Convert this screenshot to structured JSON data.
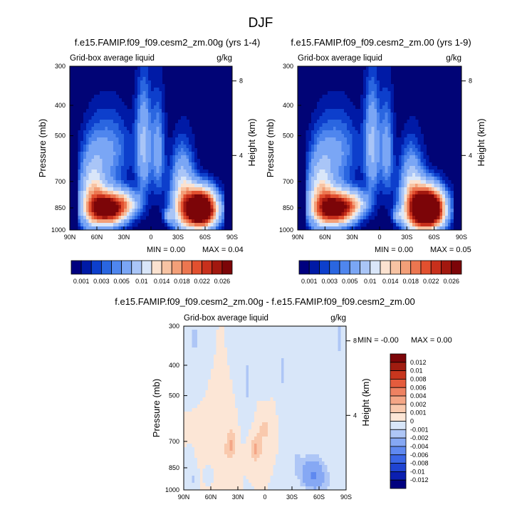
{
  "figure": {
    "title": "DJF"
  },
  "colors": {
    "seq": [
      "#00007f",
      "#001aa6",
      "#0d3fcc",
      "#2a66e0",
      "#4f86ee",
      "#7aa6f5",
      "#a9c5f7",
      "#d9e6f9",
      "#fbe2d0",
      "#f7c3a3",
      "#f39f78",
      "#ec7650",
      "#e2502f",
      "#c8301c",
      "#a2180f",
      "#7c0508"
    ],
    "diff": [
      "#00007f",
      "#0b1fb0",
      "#1f44d2",
      "#3a66e6",
      "#5f89f0",
      "#86a8f4",
      "#aec6f6",
      "#d8e6f9",
      "#fce6d6",
      "#f9c9ad",
      "#f4a686",
      "#ee8262",
      "#e45c3d",
      "#c8361e",
      "#a01c10",
      "#7c0508"
    ],
    "panel_bg": "#010476",
    "diff_bg": "#fde5d3"
  },
  "chart_data": [
    {
      "id": "panel1",
      "type": "heatmap",
      "title": "f.e15.FAMIP.f09_f09.cesm2_zm.00g (yrs 1-4)",
      "subtitle_left": "Grid-box average liquid",
      "subtitle_right": "g/kg",
      "ylabel": "Pressure (mb)",
      "ylabel_right": "Height (km)",
      "x_ticks": [
        90,
        60,
        30,
        0,
        -30,
        -60,
        -90
      ],
      "x_ticklabels": [
        "90N",
        "60N",
        "30N",
        "0",
        "30S",
        "60S",
        "90S"
      ],
      "y_ticks": [
        300,
        400,
        500,
        700,
        850,
        1000
      ],
      "y_ticklabels": [
        "300",
        "400",
        "500",
        "700",
        "850",
        "1000"
      ],
      "right_ticks": [
        8,
        4
      ],
      "right_ticklabels": [
        "8",
        "4"
      ],
      "ylim": [
        1000,
        300
      ],
      "xlim": [
        90,
        -90
      ],
      "min_label": "MIN =   0.00",
      "max_label": "MAX =  0.04",
      "levels": [
        0.001,
        0.002,
        0.003,
        0.004,
        0.005,
        0.0075,
        0.01,
        0.012,
        0.014,
        0.016,
        0.018,
        0.02,
        0.022,
        0.024,
        0.026
      ],
      "colorbar_labels": [
        "0.001",
        "0.003",
        "0.005",
        "0.01",
        "0.014",
        "0.018",
        "0.022",
        "0.026"
      ],
      "features": [
        {
          "lat": 47,
          "p": 855,
          "amp": 0.031,
          "slat": 14,
          "sp": 70
        },
        {
          "lat": 65,
          "p": 780,
          "amp": 0.012,
          "slat": 10,
          "sp": 150
        },
        {
          "lat": 25,
          "p": 820,
          "amp": 0.007,
          "slat": 10,
          "sp": 50
        },
        {
          "lat": -55,
          "p": 860,
          "amp": 0.042,
          "slat": 12,
          "sp": 80
        },
        {
          "lat": -35,
          "p": 790,
          "amp": 0.012,
          "slat": 9,
          "sp": 160
        },
        {
          "lat": 8,
          "p": 540,
          "amp": 0.008,
          "slat": 6,
          "sp": 150
        },
        {
          "lat": -8,
          "p": 560,
          "amp": 0.006,
          "slat": 5,
          "sp": 140
        },
        {
          "lat": -20,
          "p": 900,
          "amp": 0.006,
          "slat": 4,
          "sp": 35
        },
        {
          "lat": 45,
          "p": 560,
          "amp": 0.005,
          "slat": 16,
          "sp": 110
        }
      ]
    },
    {
      "id": "panel2",
      "type": "heatmap",
      "title": "f.e15.FAMIP.f09_f09.cesm2_zm.00 (yrs 1-9)",
      "subtitle_left": "Grid-box average liquid",
      "subtitle_right": "g/kg",
      "ylabel": "Pressure (mb)",
      "ylabel_right": "Height (km)",
      "x_ticks": [
        90,
        60,
        30,
        0,
        -30,
        -60,
        -90
      ],
      "x_ticklabels": [
        "90N",
        "60N",
        "30N",
        "0",
        "30S",
        "60S",
        "90S"
      ],
      "y_ticks": [
        300,
        400,
        500,
        700,
        850,
        1000
      ],
      "y_ticklabels": [
        "300",
        "400",
        "500",
        "700",
        "850",
        "1000"
      ],
      "right_ticks": [
        8,
        4
      ],
      "right_ticklabels": [
        "8",
        "4"
      ],
      "ylim": [
        1000,
        300
      ],
      "xlim": [
        90,
        -90
      ],
      "min_label": "MIN =   0.00",
      "max_label": "MAX =  0.05",
      "levels": [
        0.001,
        0.002,
        0.003,
        0.004,
        0.005,
        0.0075,
        0.01,
        0.012,
        0.014,
        0.016,
        0.018,
        0.02,
        0.022,
        0.024,
        0.026
      ],
      "colorbar_labels": [
        "0.001",
        "0.003",
        "0.005",
        "0.01",
        "0.014",
        "0.018",
        "0.022",
        "0.026"
      ],
      "features": [
        {
          "lat": 47,
          "p": 855,
          "amp": 0.03,
          "slat": 14,
          "sp": 70
        },
        {
          "lat": 65,
          "p": 780,
          "amp": 0.012,
          "slat": 10,
          "sp": 150
        },
        {
          "lat": 25,
          "p": 820,
          "amp": 0.007,
          "slat": 10,
          "sp": 50
        },
        {
          "lat": -53,
          "p": 860,
          "amp": 0.046,
          "slat": 12,
          "sp": 85
        },
        {
          "lat": -35,
          "p": 790,
          "amp": 0.012,
          "slat": 9,
          "sp": 160
        },
        {
          "lat": 8,
          "p": 540,
          "amp": 0.008,
          "slat": 6,
          "sp": 150
        },
        {
          "lat": -8,
          "p": 560,
          "amp": 0.006,
          "slat": 5,
          "sp": 140
        },
        {
          "lat": -20,
          "p": 900,
          "amp": 0.006,
          "slat": 4,
          "sp": 35
        },
        {
          "lat": 45,
          "p": 560,
          "amp": 0.005,
          "slat": 16,
          "sp": 110
        }
      ]
    },
    {
      "id": "panel3",
      "type": "heatmap",
      "title": "f.e15.FAMIP.f09_f09.cesm2_zm.00g - f.e15.FAMIP.f09_f09.cesm2_zm.00",
      "subtitle_left": "Grid-box average liquid",
      "subtitle_right": "g/kg",
      "ylabel": "Pressure (mb)",
      "ylabel_right": "Height (km)",
      "x_ticks": [
        90,
        60,
        30,
        0,
        -30,
        -60,
        -90
      ],
      "x_ticklabels": [
        "90N",
        "60N",
        "30N",
        "0",
        "30S",
        "60S",
        "90S"
      ],
      "y_ticks": [
        300,
        400,
        500,
        700,
        850,
        1000
      ],
      "y_ticklabels": [
        "300",
        "400",
        "500",
        "700",
        "850",
        "1000"
      ],
      "right_ticks": [
        8,
        4
      ],
      "right_ticklabels": [
        "8",
        "4"
      ],
      "ylim": [
        1000,
        300
      ],
      "xlim": [
        90,
        -90
      ],
      "min_label": "MIN =  -0.00",
      "max_label": "MAX =   0.00",
      "levels": [
        -0.012,
        -0.01,
        -0.008,
        -0.006,
        -0.004,
        -0.002,
        -0.001,
        0,
        0.001,
        0.002,
        0.004,
        0.006,
        0.008,
        0.01,
        0.012
      ],
      "colorbar_labels": [
        "0.012",
        "0.01",
        "0.008",
        "0.006",
        "0.004",
        "0.002",
        "0.001",
        "0",
        "-0.001",
        "-0.002",
        "-0.004",
        "-0.006",
        "-0.008",
        "-0.01",
        "-0.012"
      ],
      "features": [
        {
          "lat": 38,
          "p": 720,
          "amp": 0.0022,
          "slat": 4,
          "sp": 60
        },
        {
          "lat": 10,
          "p": 740,
          "amp": 0.0022,
          "slat": 5,
          "sp": 50
        },
        {
          "lat": 55,
          "p": 820,
          "amp": 0.0012,
          "slat": 8,
          "sp": 80
        },
        {
          "lat": -52,
          "p": 880,
          "amp": -0.0035,
          "slat": 9,
          "sp": 70
        },
        {
          "lat": -60,
          "p": 940,
          "amp": -0.0015,
          "slat": 10,
          "sp": 60
        },
        {
          "lat": -35,
          "p": 820,
          "amp": -0.0011,
          "slat": 4,
          "sp": 60
        },
        {
          "lat": 78,
          "p": 330,
          "amp": -0.0012,
          "slat": 4,
          "sp": 50
        },
        {
          "lat": -82,
          "p": 330,
          "amp": -0.0012,
          "slat": 4,
          "sp": 50
        },
        {
          "lat": 20,
          "p": 450,
          "amp": -0.0011,
          "slat": 4,
          "sp": 120
        },
        {
          "lat": 0,
          "p": 360,
          "amp": -0.0011,
          "slat": 3,
          "sp": 60
        },
        {
          "lat": -20,
          "p": 420,
          "amp": -0.0011,
          "slat": 3,
          "sp": 100
        },
        {
          "lat": 60,
          "p": 870,
          "amp": -0.0011,
          "slat": 5,
          "sp": 50
        },
        {
          "lat": 80,
          "p": 930,
          "amp": -0.0011,
          "slat": 3,
          "sp": 60
        },
        {
          "lat": 0,
          "p": 640,
          "amp": 0.0013,
          "slat": 6,
          "sp": 40
        }
      ]
    }
  ]
}
